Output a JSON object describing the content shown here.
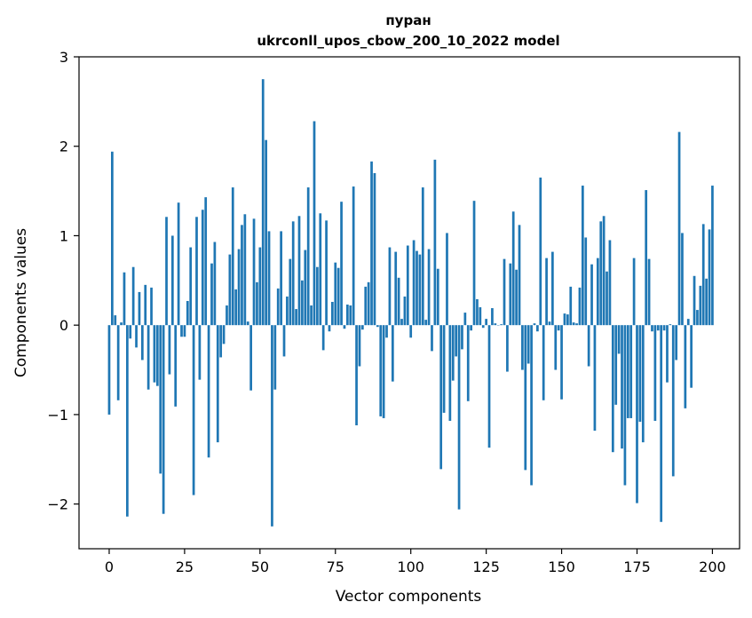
{
  "chart_data": {
    "type": "bar",
    "title_line1": "пуран",
    "title_line2": "ukrconll_upos_cbow_200_10_2022 model",
    "xlabel": "Vector components",
    "ylabel": "Components values",
    "xlim": [
      -10,
      209
    ],
    "ylim": [
      -2.5,
      3
    ],
    "x_ticks": [
      0,
      25,
      50,
      75,
      100,
      125,
      150,
      175,
      200
    ],
    "x_tick_labels": [
      "0",
      "25",
      "50",
      "75",
      "100",
      "125",
      "150",
      "175",
      "200"
    ],
    "y_ticks": [
      -2,
      -1,
      0,
      1,
      2,
      3
    ],
    "y_tick_labels": [
      "−2",
      "−1",
      "0",
      "1",
      "2",
      "3"
    ],
    "bar_color": "#1f77b4",
    "grid": false,
    "legend": "none",
    "values": [
      -1.0,
      1.94,
      0.11,
      -0.84,
      0.03,
      0.59,
      -2.14,
      -0.15,
      0.65,
      -0.25,
      0.37,
      -0.39,
      0.45,
      -0.72,
      0.42,
      -0.64,
      -0.68,
      -1.66,
      -2.11,
      1.21,
      -0.55,
      1.0,
      -0.91,
      1.37,
      -0.13,
      -0.13,
      0.27,
      0.87,
      -1.9,
      1.21,
      -0.61,
      1.29,
      1.43,
      -1.48,
      0.69,
      0.93,
      -1.31,
      -0.36,
      -0.21,
      0.22,
      0.79,
      1.54,
      0.4,
      0.85,
      1.12,
      1.24,
      0.04,
      -0.73,
      1.19,
      0.48,
      0.87,
      2.75,
      2.07,
      1.05,
      -2.25,
      -0.72,
      0.41,
      1.05,
      -0.35,
      0.32,
      0.74,
      1.16,
      0.18,
      1.22,
      0.5,
      0.84,
      1.54,
      0.22,
      2.28,
      0.65,
      1.25,
      -0.28,
      1.17,
      -0.07,
      0.26,
      0.7,
      0.64,
      1.38,
      -0.04,
      0.23,
      0.22,
      1.55,
      -1.12,
      -0.46,
      -0.05,
      0.43,
      0.48,
      1.83,
      1.7,
      -0.02,
      -1.02,
      -1.04,
      -0.14,
      0.87,
      -0.63,
      0.82,
      0.53,
      0.07,
      0.32,
      0.89,
      -0.14,
      0.95,
      0.83,
      0.79,
      1.54,
      0.06,
      0.85,
      -0.29,
      1.85,
      0.63,
      -1.61,
      -0.98,
      1.03,
      -1.07,
      -0.62,
      -0.35,
      -2.06,
      -0.27,
      0.14,
      -0.85,
      -0.06,
      1.39,
      0.29,
      0.2,
      -0.03,
      0.07,
      -1.37,
      0.19,
      0.02,
      0.0,
      0.01,
      0.74,
      -0.52,
      0.69,
      1.27,
      0.62,
      1.12,
      -0.5,
      -1.62,
      -0.43,
      -1.79,
      0.02,
      -0.07,
      1.65,
      -0.84,
      0.75,
      0.04,
      0.82,
      -0.5,
      -0.06,
      -0.83,
      0.13,
      0.12,
      0.43,
      0.03,
      0.02,
      0.42,
      1.56,
      0.98,
      -0.46,
      0.68,
      -1.18,
      0.75,
      1.16,
      1.22,
      0.6,
      0.95,
      -1.42,
      -0.89,
      -0.32,
      -1.38,
      -1.79,
      -1.04,
      -1.04,
      0.75,
      -1.99,
      -1.08,
      -1.31,
      1.51,
      0.74,
      -0.07,
      -1.07,
      -0.06,
      -2.2,
      -0.06,
      -0.64,
      0.01,
      -1.69,
      -0.39,
      2.16,
      1.03,
      -0.93,
      0.07,
      -0.7,
      0.55,
      0.17,
      0.44,
      1.13,
      0.52,
      1.07,
      1.56
    ]
  }
}
